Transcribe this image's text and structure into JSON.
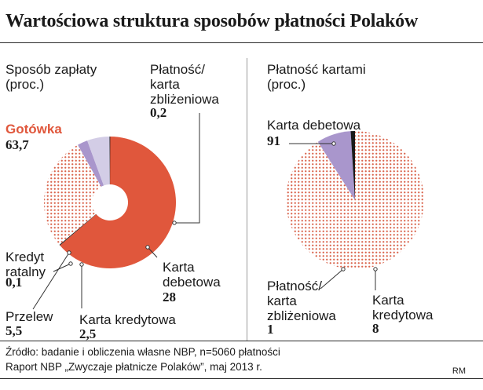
{
  "title": "Wartościowa struktura sposobów płatności Polaków",
  "left_panel": {
    "heading": "Sposób zapłaty\n(proc.)",
    "slices": [
      {
        "label": "Gotówka",
        "value": "63,7"
      },
      {
        "label": "Płatność/\nkarta\nzbliżeniowa",
        "value": "0,2"
      },
      {
        "label": "Karta\ndebetowa",
        "value": "28"
      },
      {
        "label": "Karta kredytowa",
        "value": "2,5"
      },
      {
        "label": "Przelew",
        "value": "5,5"
      },
      {
        "label": "Kredyt\nratalny",
        "value": "0,1"
      }
    ]
  },
  "right_panel": {
    "heading": "Płatność kartami\n(proc.)",
    "slices": [
      {
        "label": "Karta debetowa",
        "value": "91"
      },
      {
        "label": "Karta\nkredytowa",
        "value": "8"
      },
      {
        "label": "Płatność/\nkarta\nzbliżeniowa",
        "value": "1"
      }
    ]
  },
  "source": {
    "line1": "Źródło: badanie i obliczenia własne NBP, n=5060 płatności",
    "line2": "Raport NBP „Zwyczaje płatnicze Polaków”, maj 2013 r."
  },
  "author": "RM",
  "colors": {
    "cash": "#e0573c",
    "debit_dots": "#d9644c",
    "credit": "#a996cc",
    "transfer": "#d3cde6",
    "contactless": "#1a1a1a",
    "installment": "#1a1a1a",
    "leader": "#333333"
  },
  "chart_data": [
    {
      "type": "pie",
      "title": "Sposób zapłaty (proc.)",
      "categories": [
        "Gotówka",
        "Płatność/karta zbliżeniowa",
        "Karta debetowa",
        "Karta kredytowa",
        "Przelew",
        "Kredyt ratalny"
      ],
      "values": [
        63.7,
        0.2,
        28,
        2.5,
        5.5,
        0.1
      ],
      "donut": true,
      "legend": "none"
    },
    {
      "type": "pie",
      "title": "Płatność kartami (proc.)",
      "categories": [
        "Karta debetowa",
        "Karta kredytowa",
        "Płatność/karta zbliżeniowa"
      ],
      "values": [
        91,
        8,
        1
      ],
      "donut": false,
      "legend": "none"
    }
  ]
}
